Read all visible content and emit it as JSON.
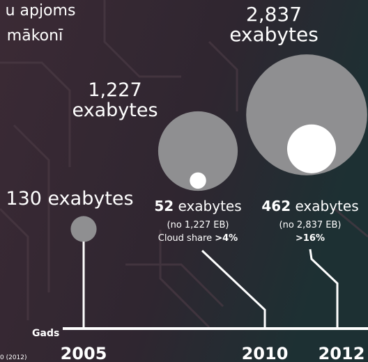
{
  "chart_data": {
    "type": "bubble",
    "title_lines": [
      "u apjoms",
      "mākonī"
    ],
    "x_label": "Gads",
    "x": [
      2005,
      2010,
      2012
    ],
    "unit": "exabytes",
    "values": [
      130,
      1227,
      2837
    ],
    "value_labels": [
      "130",
      "1,227",
      "2,837"
    ],
    "color": "#8f8f91",
    "cloud_values": [
      null,
      52,
      462
    ],
    "cloud_value_labels": [
      null,
      "52",
      "462"
    ],
    "cloud_color": "#ffffff",
    "cloud_notes": [
      null,
      "(no 1,227 EB)",
      "(no 2,837 EB)"
    ],
    "cloud_share_label": "Cloud share",
    "cloud_shares": [
      null,
      4,
      16
    ],
    "cloud_share_labels": [
      null,
      ">4%",
      ">16%"
    ],
    "source": "0 (2012)"
  }
}
